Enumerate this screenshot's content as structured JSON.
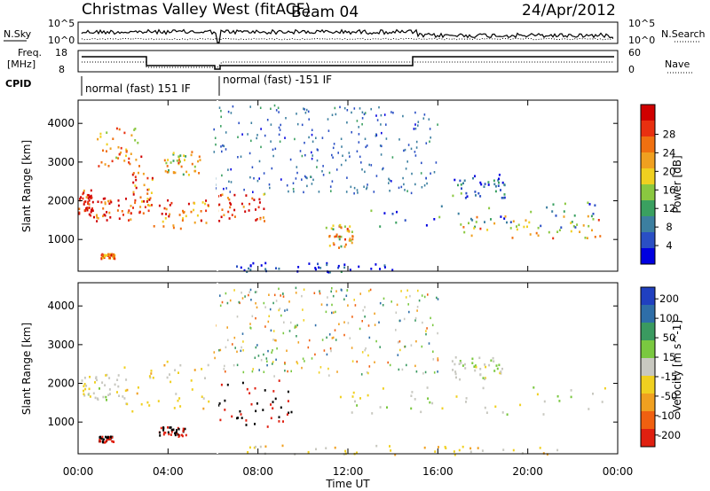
{
  "header": {
    "station": "Christmas Valley West (fitACF)",
    "beam": "Beam 04",
    "date": "24/Apr/2012"
  },
  "strips": {
    "nsky_label": "N.Sky",
    "nsky_top": "10^5",
    "nsky_bottom": "10^0",
    "nsearch_label": "N.Search",
    "freq_label": "Freq.",
    "freq_unit": "[MHz]",
    "freq_top": "18",
    "freq_bottom": "8",
    "nave_top": "60",
    "nave_bottom": "0",
    "nave_label": "Nave",
    "cpid_label": "CPID",
    "cpid_mode_1": "normal (fast) 151 IF",
    "cpid_mode_2": "normal (fast) -151 IF"
  },
  "chart_data": [
    {
      "type": "heatmap",
      "panel": "power",
      "ylabel": "Slant Range [km]",
      "xlabel": "Time UT",
      "xlim_hours": [
        0,
        24
      ],
      "ylim_km": [
        180,
        4600
      ],
      "x_ticks": [
        "00:00",
        "04:00",
        "08:00",
        "12:00",
        "16:00",
        "20:00",
        "00:00"
      ],
      "y_ticks": [
        1000,
        2000,
        3000,
        4000
      ],
      "colorbar": {
        "label": "Power [dB]",
        "ticks": [
          4,
          8,
          12,
          16,
          20,
          24,
          28
        ],
        "colors": [
          "#0000e0",
          "#2a4fc4",
          "#3c7fa0",
          "#3aa060",
          "#8ac840",
          "#f0d020",
          "#f0a020",
          "#f07010",
          "#e83010",
          "#d00000"
        ]
      },
      "regions": [
        {
          "t": [
            0.0,
            0.6
          ],
          "r": [
            1600,
            2300
          ],
          "value": 26
        },
        {
          "t": [
            0.6,
            2.4
          ],
          "r": [
            1500,
            2100
          ],
          "value": 24
        },
        {
          "t": [
            2.4,
            3.3
          ],
          "r": [
            1700,
            2800
          ],
          "value": 22
        },
        {
          "t": [
            3.3,
            5.8
          ],
          "r": [
            1300,
            2100
          ],
          "value": 22
        },
        {
          "t": [
            0.8,
            2.8
          ],
          "r": [
            2900,
            3900
          ],
          "value": 20
        },
        {
          "t": [
            3.8,
            5.4
          ],
          "r": [
            2700,
            3300
          ],
          "value": 18
        },
        {
          "t": [
            1.0,
            1.6
          ],
          "r": [
            520,
            650
          ],
          "value": 22
        },
        {
          "t": [
            6.1,
            8.3
          ],
          "r": [
            1500,
            2200
          ],
          "value": 24
        },
        {
          "t": [
            11.0,
            12.2
          ],
          "r": [
            800,
            1400
          ],
          "value": 18
        },
        {
          "t": [
            12.0,
            23.2
          ],
          "r": [
            1300,
            2000
          ],
          "value": 10
        },
        {
          "t": [
            17.0,
            23.4
          ],
          "r": [
            1050,
            1650
          ],
          "value": 18
        },
        {
          "t": [
            16.6,
            19.0
          ],
          "r": [
            2100,
            2700
          ],
          "value": 8
        },
        {
          "t": [
            7.0,
            14.0
          ],
          "r": [
            180,
            420
          ],
          "value": 6
        }
      ]
    },
    {
      "type": "heatmap",
      "panel": "velocity",
      "ylabel": "Slant Range [km]",
      "xlabel": "Time UT",
      "xlim_hours": [
        0,
        24
      ],
      "ylim_km": [
        180,
        4600
      ],
      "x_ticks": [
        "00:00",
        "04:00",
        "08:00",
        "12:00",
        "16:00",
        "20:00",
        "00:00"
      ],
      "y_ticks": [
        1000,
        2000,
        3000,
        4000
      ],
      "colorbar": {
        "label": "Velocity [m s^-1]",
        "ticks": [
          200,
          100,
          50,
          15,
          -15,
          -50,
          -100,
          -200
        ],
        "colors": [
          "#2040c0",
          "#2e6ea8",
          "#3a9a60",
          "#7ac840",
          "#c8c8c0",
          "#f0d020",
          "#f0a020",
          "#f06010",
          "#e02010"
        ]
      },
      "regions": [
        {
          "t": [
            0.0,
            2.0
          ],
          "r": [
            1600,
            2300
          ],
          "value": 0
        },
        {
          "t": [
            2.0,
            5.8
          ],
          "r": [
            1300,
            2600
          ],
          "value": -40
        },
        {
          "t": [
            0.9,
            1.6
          ],
          "r": [
            500,
            650
          ],
          "value": -200
        },
        {
          "t": [
            3.5,
            4.8
          ],
          "r": [
            650,
            900
          ],
          "value": -200
        },
        {
          "t": [
            6.2,
            9.5
          ],
          "r": [
            900,
            2100
          ],
          "value": -200
        },
        {
          "t": [
            11.2,
            23.6
          ],
          "r": [
            1200,
            2000
          ],
          "value": 0
        },
        {
          "t": [
            16.6,
            19.0
          ],
          "r": [
            2100,
            2700
          ],
          "value": 0
        },
        {
          "t": [
            7.0,
            22.0
          ],
          "r": [
            180,
            420
          ],
          "value": -40
        }
      ]
    }
  ]
}
